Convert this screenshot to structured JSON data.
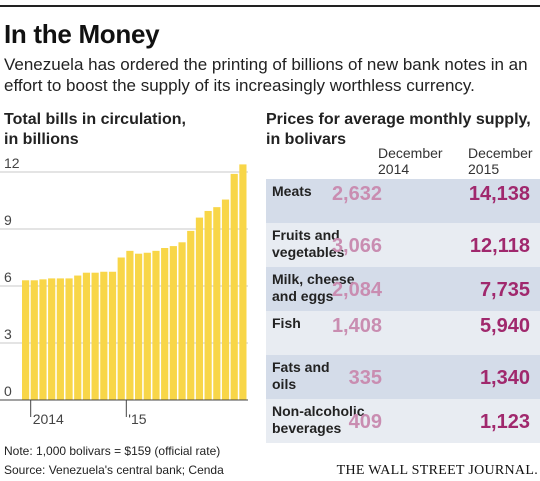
{
  "header": {
    "title": "In the Money",
    "subtitle": "Venezuela has ordered the printing of billions of new bank notes in an effort to boost the supply of its increasingly worthless currency."
  },
  "left_panel": {
    "heading_line1": "Total bills in circulation,",
    "heading_line2": "in billions"
  },
  "right_panel": {
    "heading_line1": "Prices for average monthly supply,",
    "heading_line2": "in bolivars",
    "col1_line1": "December",
    "col1_line2": "2014",
    "col2_line1": "December",
    "col2_line2": "2015"
  },
  "footer": {
    "note": "Note: 1,000 bolivars = $159 (official rate)",
    "source": "Source: Venezuela's central bank; Cenda",
    "publisher": "THE WALL STREET JOURNAL."
  },
  "colors": {
    "bar": "#f8d648",
    "grid": "#c8c8c8",
    "price_2014": "#c98db1",
    "price_2015": "#a0286d",
    "row_dark": "#d4dce9",
    "row_light": "#e8ecf2"
  },
  "chart_data": [
    {
      "type": "bar",
      "title": "Total bills in circulation, in billions",
      "ylim": [
        0,
        12
      ],
      "yticks": [
        "12",
        "9",
        "6",
        "3",
        "0"
      ],
      "ytick_values": [
        12,
        9,
        6,
        3,
        0
      ],
      "grid": true,
      "xtick_labels": [
        {
          "label": "2014",
          "index": 1
        },
        {
          "label": "'15",
          "index": 12
        }
      ],
      "values": [
        6.3,
        6.3,
        6.35,
        6.4,
        6.4,
        6.4,
        6.55,
        6.7,
        6.7,
        6.75,
        6.75,
        7.5,
        7.85,
        7.7,
        7.75,
        7.85,
        8.0,
        8.1,
        8.3,
        8.9,
        9.6,
        9.95,
        10.15,
        10.55,
        11.9,
        12.4
      ]
    },
    {
      "type": "table",
      "title": "Prices for average monthly supply, in bolivars",
      "columns": [
        "December 2014",
        "December 2015"
      ],
      "rows": [
        {
          "label_line1": "Meats",
          "label_line2": "",
          "dec2014": "2,632",
          "dec2015": "14,138"
        },
        {
          "label_line1": "Fruits and",
          "label_line2": "vegetables",
          "dec2014": "3,066",
          "dec2015": "12,118"
        },
        {
          "label_line1": "Milk, cheese",
          "label_line2": "and eggs",
          "dec2014": "2,084",
          "dec2015": "7,735"
        },
        {
          "label_line1": "Fish",
          "label_line2": "",
          "dec2014": "1,408",
          "dec2015": "5,940"
        },
        {
          "label_line1": "Fats and",
          "label_line2": "oils",
          "dec2014": "335",
          "dec2015": "1,340"
        },
        {
          "label_line1": "Non-alcoholic",
          "label_line2": "beverages",
          "dec2014": "409",
          "dec2015": "1,123"
        }
      ]
    }
  ]
}
